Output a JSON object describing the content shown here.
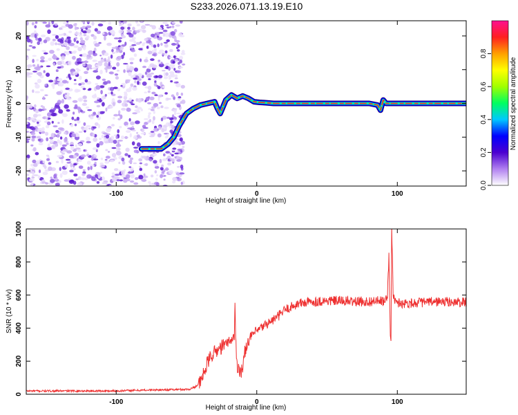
{
  "title": "S233.2026.071.13.19.E10",
  "colorbar": {
    "label": "Normalized spectral amplitude",
    "ticks": [
      "0.0",
      "0.2",
      "0.4",
      "0.6",
      "0.8"
    ],
    "tick_values": [
      0.0,
      0.2,
      0.4,
      0.6,
      0.8
    ],
    "range": [
      0,
      1
    ],
    "stops": [
      "#ffffff",
      "#b07ff0",
      "#4b00d0",
      "#0000ff",
      "#00c8ff",
      "#00ff60",
      "#a0ff00",
      "#ffff00",
      "#ffa000",
      "#ff2020",
      "#ff1090"
    ]
  },
  "chart_data": [
    {
      "type": "heatmap",
      "name": "spectrogram",
      "xlabel": "Height of straight line (km)",
      "ylabel": "Frequency (Hz)",
      "xlim": [
        -164,
        149
      ],
      "ylim": [
        -24.5,
        24.5
      ],
      "xticks": [
        -100,
        0,
        100
      ],
      "xtick_labels": [
        "-100",
        "0",
        "100"
      ],
      "yticks": [
        -20,
        -10,
        0,
        10,
        20
      ],
      "ytick_labels": [
        "-20",
        "-10",
        "0",
        "10",
        "20"
      ],
      "noise_region_x": [
        -164,
        -54
      ],
      "ridge": {
        "x": [
          -82,
          -75,
          -68,
          -63,
          -59,
          -55,
          -50,
          -45,
          -40,
          -35,
          -30,
          -28,
          -26,
          -24,
          -22,
          -18,
          -14,
          -10,
          -6,
          -2,
          2,
          6,
          12,
          20,
          40,
          60,
          80,
          86,
          88,
          90,
          92,
          96,
          110,
          130,
          149
        ],
        "freq": [
          -13.5,
          -13.5,
          -13.5,
          -12,
          -10,
          -6.5,
          -3,
          -1.5,
          -0.5,
          0,
          0.5,
          -1.5,
          -3,
          -1,
          1,
          2.5,
          1.5,
          2.2,
          1.5,
          0.5,
          0.3,
          0.2,
          0,
          0,
          0,
          0,
          0,
          -0.5,
          -2,
          1,
          0,
          0,
          0,
          0,
          0
        ],
        "color": "#ff2020"
      }
    },
    {
      "type": "line",
      "name": "snr",
      "xlabel": "Height of straight line (km)",
      "ylabel": "SNR (10 * v/v)",
      "xlim": [
        -164,
        149
      ],
      "ylim": [
        0,
        1000
      ],
      "xticks": [
        -100,
        0,
        100
      ],
      "xtick_labels": [
        "-100",
        "0",
        "100"
      ],
      "yticks": [
        0,
        200,
        400,
        600,
        800,
        1000
      ],
      "ytick_labels": [
        "0",
        "200",
        "400",
        "600",
        "800",
        "1000"
      ],
      "color": "#ee3030",
      "series": [
        {
          "name": "SNR",
          "x": [
            -164,
            -140,
            -120,
            -100,
            -80,
            -60,
            -48,
            -44,
            -40,
            -38,
            -35,
            -32,
            -29,
            -26,
            -23,
            -20,
            -18,
            -16,
            -15.5,
            -15,
            -14,
            -13,
            -12,
            -11,
            -10,
            -9,
            -8,
            -6,
            -4,
            -2,
            0,
            3,
            6,
            10,
            15,
            20,
            25,
            30,
            40,
            50,
            60,
            70,
            80,
            85,
            90,
            92,
            93,
            94,
            95,
            95.5,
            96,
            97,
            98,
            100,
            105,
            115,
            130,
            149
          ],
          "values": [
            20,
            20,
            20,
            20,
            25,
            28,
            30,
            45,
            70,
            120,
            190,
            240,
            260,
            280,
            300,
            320,
            330,
            350,
            540,
            330,
            180,
            160,
            150,
            140,
            150,
            220,
            280,
            320,
            350,
            370,
            380,
            400,
            420,
            440,
            470,
            510,
            530,
            550,
            560,
            565,
            565,
            560,
            560,
            565,
            560,
            570,
            590,
            850,
            380,
            300,
            1000,
            620,
            560,
            555,
            550,
            555,
            560,
            555
          ]
        }
      ]
    }
  ]
}
